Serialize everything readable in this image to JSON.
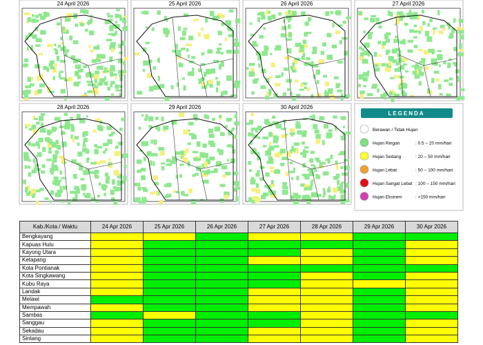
{
  "maps": [
    {
      "title": "24 April 2026"
    },
    {
      "title": "25 April 2026"
    },
    {
      "title": "26 April 2026"
    },
    {
      "title": "27 April 2026"
    },
    {
      "title": "28 April 2026"
    },
    {
      "title": "29 April 2026"
    },
    {
      "title": "30 April 2026"
    }
  ],
  "legend": {
    "title": "LEGENDA",
    "items": [
      {
        "label": "Berawan / Tidak Hujan",
        "range": null,
        "color": "#ffffff"
      },
      {
        "label": "Hujan Ringan",
        "range": ": 0.5 – 20 mm/hari",
        "color": "#7fe07f"
      },
      {
        "label": "Hujan Sedang",
        "range": ": 20 – 50 mm/hari",
        "color": "#ffff33"
      },
      {
        "label": "Hujan Lebat",
        "range": ": 50 – 100 mm/hari",
        "color": "#f0a030"
      },
      {
        "label": "Hujan Sangat Lebat",
        "range": ": 100 – 150 mm/hari",
        "color": "#e01010"
      },
      {
        "label": "Hujan Ekstrem",
        "range": ": >150 mm/hari",
        "color": "#d040b0"
      }
    ]
  },
  "table": {
    "header": [
      "Kab./Kota / Waktu",
      "24 Apr 2026",
      "25 Apr 2026",
      "26 Apr 2026",
      "27 Apr 2026",
      "28 Apr 2026",
      "29 Apr 2026",
      "30 Apr 2026"
    ],
    "rows": [
      {
        "name": "Bengkayang",
        "cells": [
          "#ffff00",
          "#ffff00",
          "#00ee00",
          "#ffff00",
          "#ffff00",
          "#00ee00",
          "#00ee00"
        ]
      },
      {
        "name": "Kapuas Hulu",
        "cells": [
          "#ffff00",
          "#00ee00",
          "#00ee00",
          "#00ee00",
          "#00ee00",
          "#00ee00",
          "#ffff00"
        ]
      },
      {
        "name": "Kayong Utara",
        "cells": [
          "#ffff00",
          "#00ee00",
          "#00ee00",
          "#00ee00",
          "#ffff00",
          "#00ee00",
          "#ffff00"
        ]
      },
      {
        "name": "Ketapang",
        "cells": [
          "#ffff00",
          "#00ee00",
          "#00ee00",
          "#ffff00",
          "#ffff00",
          "#00ee00",
          "#ffff00"
        ]
      },
      {
        "name": "Kota Pontianak",
        "cells": [
          "#ffff00",
          "#00ee00",
          "#00ee00",
          "#00ee00",
          "#00ee00",
          "#00ee00",
          "#00ee00"
        ]
      },
      {
        "name": "Kota Singkawang",
        "cells": [
          "#ffff00",
          "#00ee00",
          "#00ee00",
          "#00ee00",
          "#ffff00",
          "#00ee00",
          "#ffff00"
        ]
      },
      {
        "name": "Kubu Raya",
        "cells": [
          "#ffff00",
          "#00ee00",
          "#00ee00",
          "#00ee00",
          "#ffff00",
          "#ffff00",
          "#ffff00"
        ]
      },
      {
        "name": "Landak",
        "cells": [
          "#ffff00",
          "#00ee00",
          "#00ee00",
          "#ffff00",
          "#ffff00",
          "#00ee00",
          "#ffff00"
        ]
      },
      {
        "name": "Melawi",
        "cells": [
          "#00ee00",
          "#00ee00",
          "#00ee00",
          "#ffff00",
          "#ffff00",
          "#00ee00",
          "#ffff00"
        ]
      },
      {
        "name": "Mempawah",
        "cells": [
          "#ffff00",
          "#00ee00",
          "#00ee00",
          "#ffff00",
          "#ffff00",
          "#00ee00",
          "#ffff00"
        ]
      },
      {
        "name": "Sambas",
        "cells": [
          "#00ee00",
          "#ffff00",
          "#00ee00",
          "#00ee00",
          "#ffff00",
          "#00ee00",
          "#00ee00"
        ]
      },
      {
        "name": "Sanggau",
        "cells": [
          "#ffff00",
          "#00ee00",
          "#00ee00",
          "#00ee00",
          "#ffff00",
          "#00ee00",
          "#ffff00"
        ]
      },
      {
        "name": "Sekadau",
        "cells": [
          "#ffff00",
          "#00ee00",
          "#00ee00",
          "#ffff00",
          "#ffff00",
          "#00ee00",
          "#ffff00"
        ]
      },
      {
        "name": "Sintang",
        "cells": [
          "#ffff00",
          "#00ee00",
          "#00ee00",
          "#ffff00",
          "#ffff00",
          "#00ee00",
          "#ffff00"
        ]
      }
    ]
  }
}
